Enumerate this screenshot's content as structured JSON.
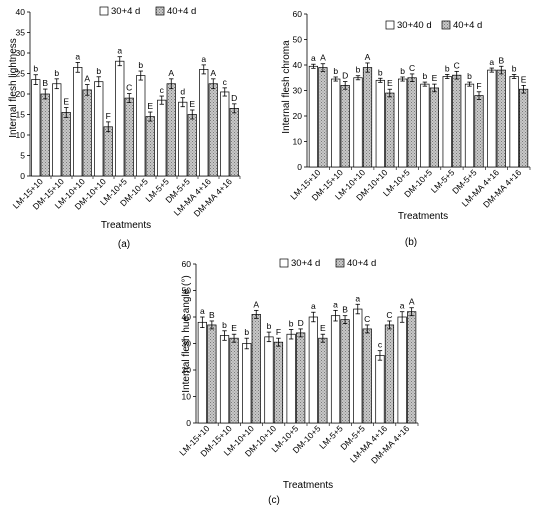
{
  "panels": [
    {
      "label": "(a)"
    },
    {
      "label": "(b)"
    },
    {
      "label": "(c)"
    }
  ],
  "chart_data": [
    {
      "type": "bar",
      "xlabel": "Treatments",
      "ylabel": "Internal flesh lightness",
      "ylim": [
        0,
        40
      ],
      "yticks": [
        0,
        5,
        10,
        15,
        20,
        25,
        30,
        35,
        40
      ],
      "legend_position": "top-right",
      "grid": false,
      "categories": [
        "LM-15+10",
        "DM-15+10",
        "LM-10+10",
        "DM-10+10",
        "LM-10+5",
        "DM-10+5",
        "LM-5+5",
        "DM-5+5",
        "LM-MA 4+16",
        "DM-MA 4+16"
      ],
      "series": [
        {
          "name": "30+4 d",
          "values": [
            23.5,
            22.5,
            26.5,
            23.0,
            28.0,
            24.5,
            18.5,
            18.0,
            26.0,
            20.5
          ],
          "errors": [
            1.2,
            1.2,
            1.2,
            1.2,
            1.1,
            1.1,
            1.0,
            1.1,
            1.1,
            1.0
          ],
          "letters": [
            "b",
            "b",
            "a",
            "b",
            "a",
            "b",
            "c",
            "d",
            "a",
            "c"
          ]
        },
        {
          "name": "40+4 d",
          "values": [
            20.0,
            15.5,
            21.0,
            12.0,
            19.0,
            14.5,
            22.5,
            15.0,
            22.5,
            16.5
          ],
          "errors": [
            1.2,
            1.2,
            1.3,
            1.2,
            1.1,
            1.1,
            1.2,
            1.1,
            1.2,
            1.1
          ],
          "letters": [
            "B",
            "E",
            "A",
            "F",
            "C",
            "E",
            "A",
            "E",
            "A",
            "D"
          ]
        }
      ],
      "colors": {
        "series1": "#ffffff",
        "series2": "#c8c8c8",
        "axis": "#000000"
      }
    },
    {
      "type": "bar",
      "xlabel": "Treatments",
      "ylabel": "Internal flesh chroma",
      "ylim": [
        0,
        60
      ],
      "yticks": [
        0,
        10,
        20,
        30,
        40,
        50,
        60
      ],
      "legend_position": "top-right",
      "grid": false,
      "categories": [
        "LM-15+10",
        "DM-15+10",
        "LM-10+10",
        "DM-10+10",
        "LM-10+5",
        "DM-10+5",
        "LM-5+5",
        "DM-5+5",
        "LM-MA 4+16",
        "DM-MA 4+16"
      ],
      "series": [
        {
          "name": "30+40 d",
          "values": [
            39.5,
            34.5,
            35.0,
            34.0,
            34.5,
            32.5,
            35.5,
            32.5,
            38.0,
            35.5
          ],
          "errors": [
            0.8,
            0.8,
            0.8,
            0.8,
            0.8,
            0.8,
            0.8,
            0.8,
            0.8,
            0.8
          ],
          "letters": [
            "a",
            "b",
            "b",
            "b",
            "b",
            "b",
            "b",
            "b",
            "a",
            "b"
          ]
        },
        {
          "name": "40+4 d",
          "values": [
            39.0,
            32.0,
            39.0,
            29.0,
            35.0,
            31.0,
            36.0,
            28.0,
            38.0,
            30.5
          ],
          "errors": [
            1.5,
            1.5,
            1.8,
            1.5,
            1.5,
            1.5,
            1.5,
            1.5,
            1.5,
            1.5
          ],
          "letters": [
            "A",
            "D",
            "A",
            "E",
            "C",
            "E",
            "C",
            "F",
            "B",
            "E"
          ]
        }
      ],
      "colors": {
        "series1": "#ffffff",
        "series2": "#c8c8c8",
        "axis": "#000000"
      }
    },
    {
      "type": "bar",
      "xlabel": "Treatments",
      "ylabel": "Internal flesh hue angle (°)",
      "ylim": [
        0,
        60
      ],
      "yticks": [
        0,
        10,
        20,
        30,
        40,
        50,
        60
      ],
      "legend_position": "top-right",
      "grid": false,
      "categories": [
        "LM-15+10",
        "DM-15+10",
        "LM-10+10",
        "DM-10+10",
        "LM-10+5",
        "DM-10+5",
        "LM-5+5",
        "DM-5+5",
        "LM-MA 4+16",
        "DM-MA 4+16"
      ],
      "series": [
        {
          "name": "30+4 d",
          "values": [
            38.0,
            33.0,
            30.0,
            32.5,
            33.5,
            40.0,
            40.5,
            43.0,
            25.5,
            40.0
          ],
          "errors": [
            2.0,
            1.8,
            2.0,
            1.8,
            1.8,
            1.8,
            2.0,
            1.8,
            1.8,
            2.0
          ],
          "letters": [
            "a",
            "b",
            "b",
            "b",
            "b",
            "a",
            "a",
            "a",
            "c",
            "a"
          ]
        },
        {
          "name": "40+4 d",
          "values": [
            37.0,
            32.0,
            41.0,
            30.5,
            34.0,
            32.0,
            39.0,
            35.5,
            37.0,
            42.0
          ],
          "errors": [
            1.5,
            1.5,
            1.5,
            1.5,
            1.5,
            1.5,
            1.5,
            1.5,
            1.5,
            1.5
          ],
          "letters": [
            "B",
            "E",
            "A",
            "F",
            "D",
            "E",
            "B",
            "C",
            "C",
            "A"
          ]
        }
      ],
      "colors": {
        "series1": "#ffffff",
        "series2": "#c8c8c8",
        "axis": "#000000"
      }
    }
  ]
}
